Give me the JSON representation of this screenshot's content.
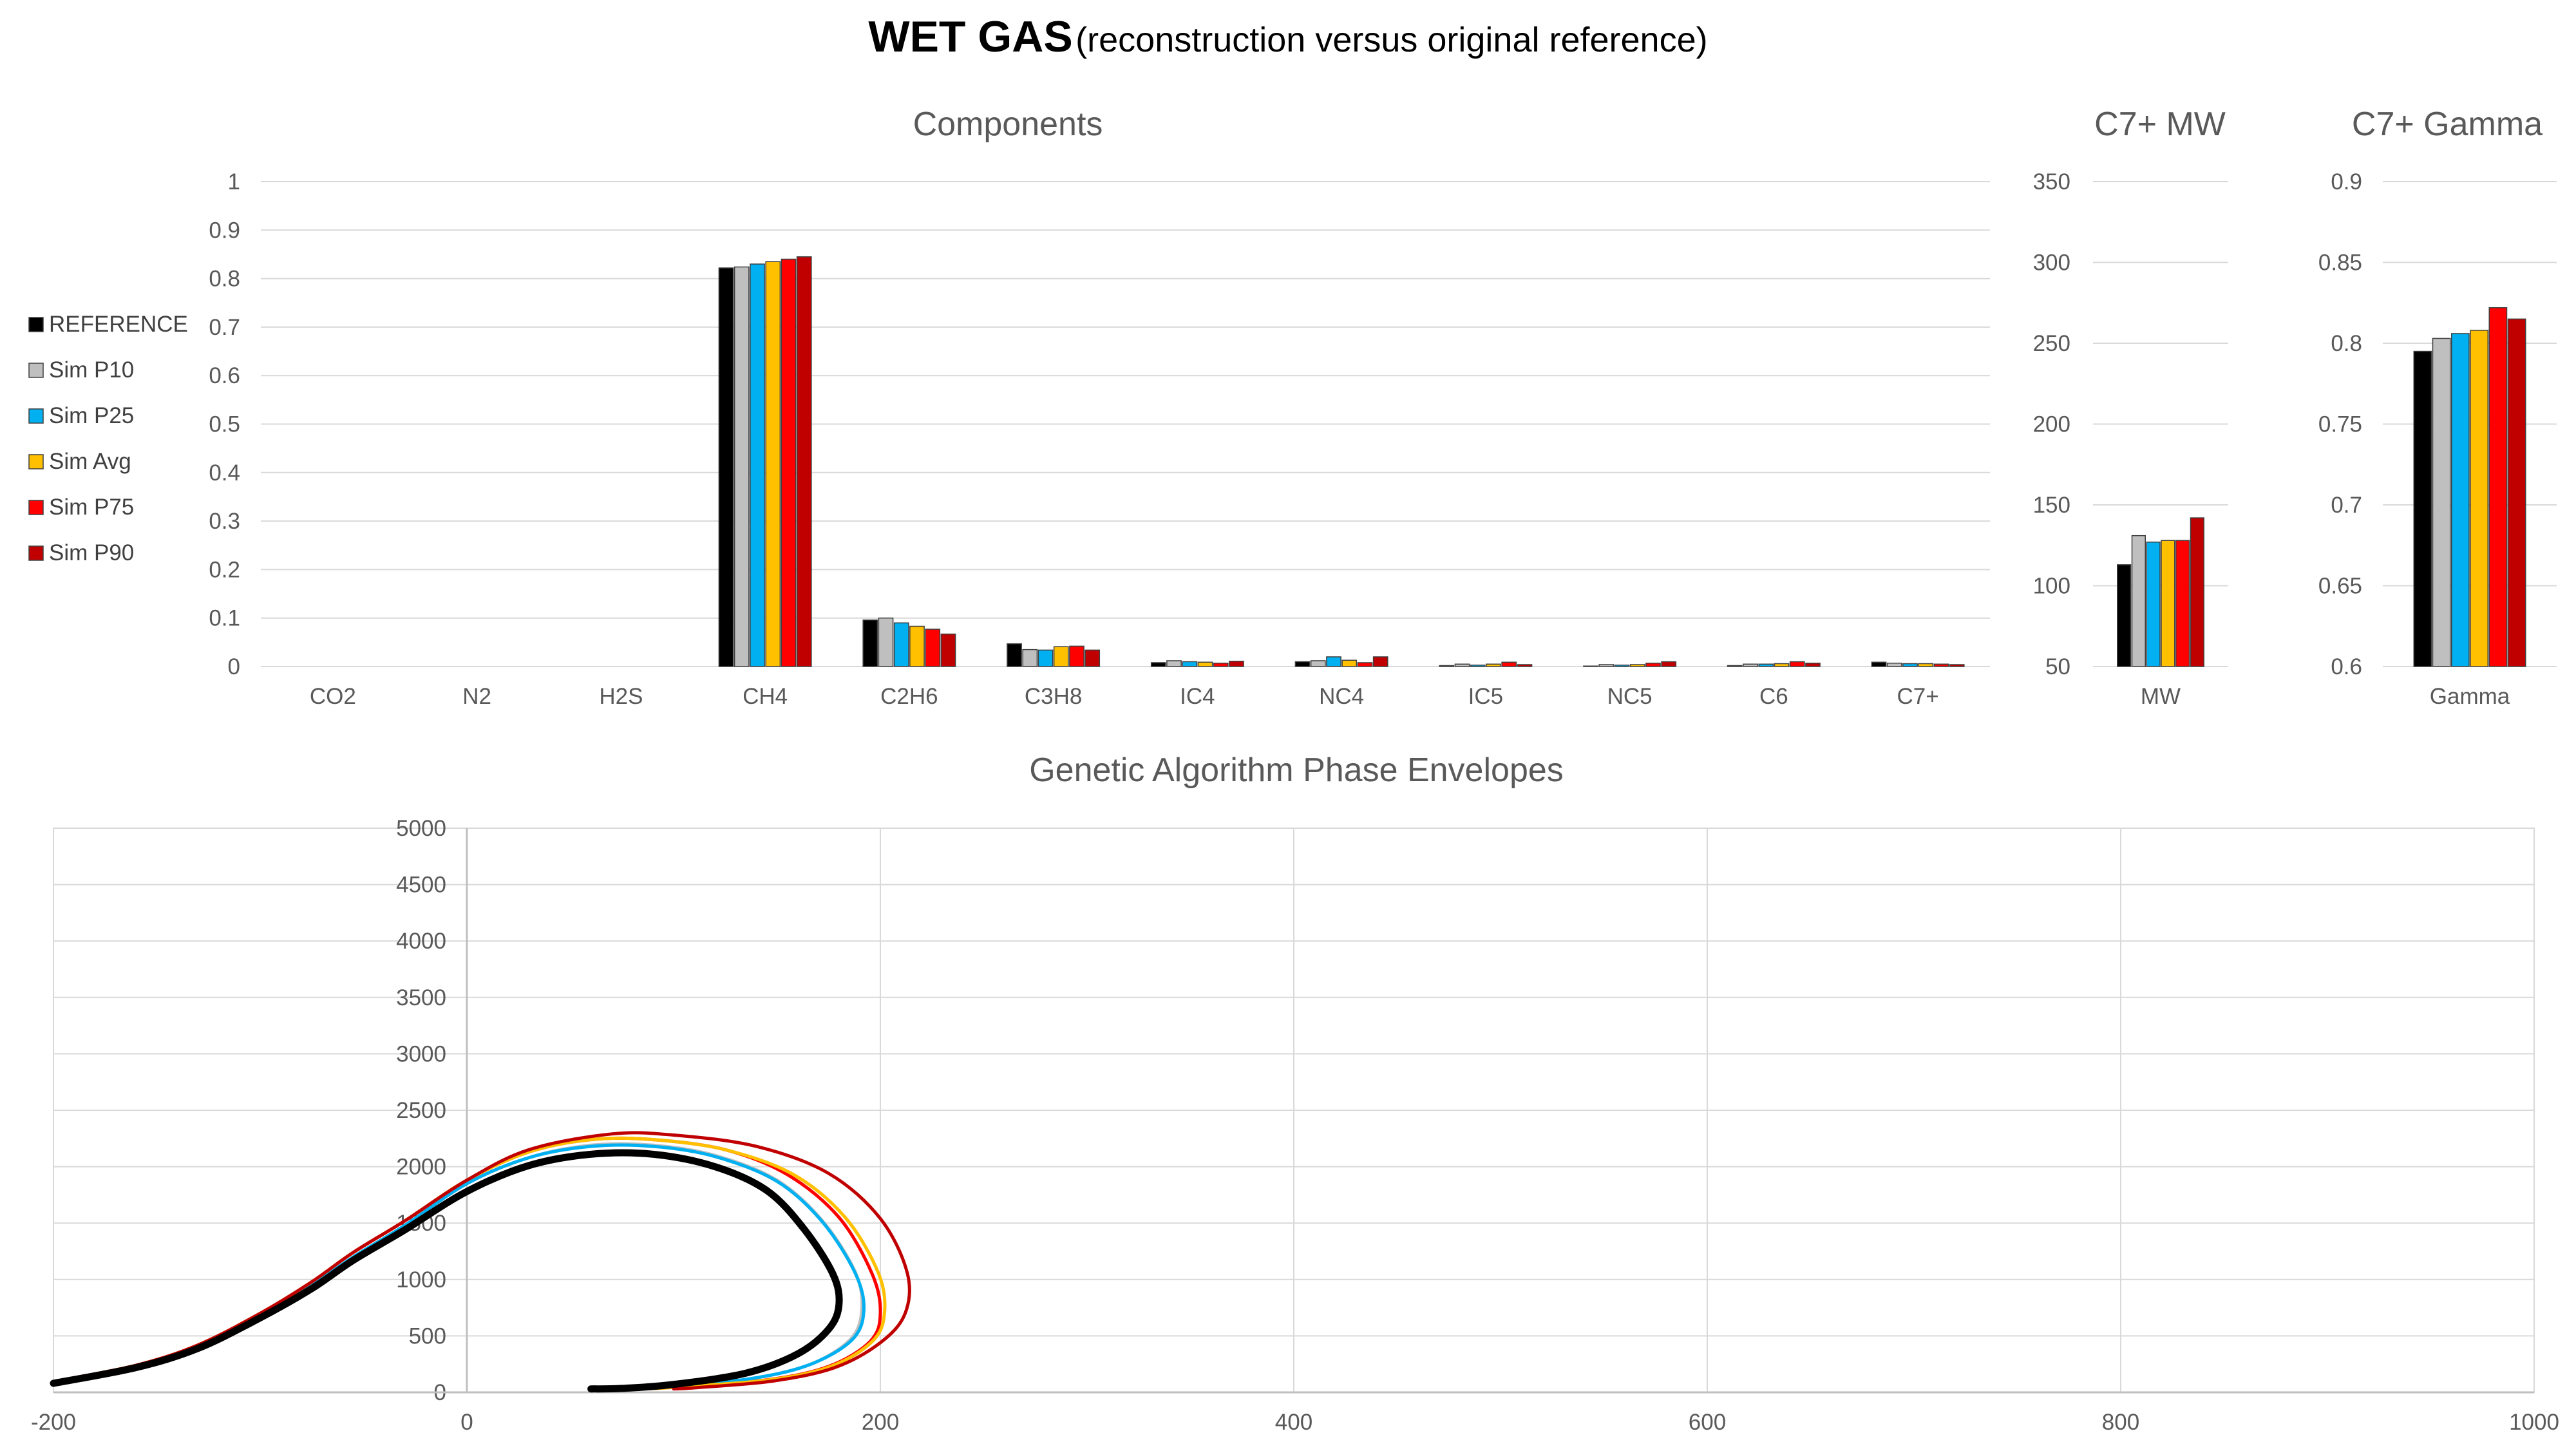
{
  "page": {
    "title_main": "WET GAS",
    "title_sub": "(reconstruction versus original reference)"
  },
  "legend": [
    {
      "name": "REFERENCE",
      "color": "#000000"
    },
    {
      "name": "Sim P10",
      "color": "#bfbfbf"
    },
    {
      "name": "Sim P25",
      "color": "#00b0f0"
    },
    {
      "name": "Sim Avg",
      "color": "#ffc000"
    },
    {
      "name": "Sim P75",
      "color": "#ff0000"
    },
    {
      "name": "Sim P90",
      "color": "#c00000"
    }
  ],
  "chart_data": [
    {
      "type": "bar",
      "title": "Components",
      "categories": [
        "CO2",
        "N2",
        "H2S",
        "CH4",
        "C2H6",
        "C3H8",
        "IC4",
        "NC4",
        "IC5",
        "NC5",
        "C6",
        "C7+"
      ],
      "ylim": [
        0,
        1
      ],
      "yticks": [
        0,
        0.1,
        0.2,
        0.3,
        0.4,
        0.5,
        0.6,
        0.7,
        0.8,
        0.9,
        1
      ],
      "grid": true,
      "legend_position": "left",
      "series": [
        {
          "name": "REFERENCE",
          "color": "#000000",
          "values": [
            0,
            0,
            0,
            0.822,
            0.096,
            0.047,
            0.008,
            0.01,
            0.002,
            0.001,
            0.002,
            0.009
          ]
        },
        {
          "name": "Sim P10",
          "color": "#bfbfbf",
          "values": [
            0,
            0,
            0,
            0.824,
            0.1,
            0.035,
            0.012,
            0.012,
            0.005,
            0.004,
            0.005,
            0.007
          ]
        },
        {
          "name": "Sim P25",
          "color": "#00b0f0",
          "values": [
            0,
            0,
            0,
            0.83,
            0.09,
            0.034,
            0.01,
            0.02,
            0.003,
            0.003,
            0.005,
            0.006
          ]
        },
        {
          "name": "Sim Avg",
          "color": "#ffc000",
          "values": [
            0,
            0,
            0,
            0.835,
            0.083,
            0.041,
            0.009,
            0.013,
            0.005,
            0.004,
            0.006,
            0.006
          ]
        },
        {
          "name": "Sim P75",
          "color": "#ff0000",
          "values": [
            0,
            0,
            0,
            0.84,
            0.077,
            0.042,
            0.007,
            0.008,
            0.009,
            0.007,
            0.01,
            0.005
          ]
        },
        {
          "name": "Sim P90",
          "color": "#c00000",
          "values": [
            0,
            0,
            0,
            0.845,
            0.067,
            0.034,
            0.011,
            0.02,
            0.004,
            0.01,
            0.007,
            0.004
          ]
        }
      ]
    },
    {
      "type": "bar",
      "title": "C7+ MW",
      "categories": [
        "MW"
      ],
      "ylim": [
        50,
        350
      ],
      "yticks": [
        50,
        100,
        150,
        200,
        250,
        300,
        350
      ],
      "grid": true,
      "series": [
        {
          "name": "REFERENCE",
          "color": "#000000",
          "values": [
            113
          ]
        },
        {
          "name": "Sim P10",
          "color": "#bfbfbf",
          "values": [
            131
          ]
        },
        {
          "name": "Sim P25",
          "color": "#00b0f0",
          "values": [
            127
          ]
        },
        {
          "name": "Sim Avg",
          "color": "#ffc000",
          "values": [
            128
          ]
        },
        {
          "name": "Sim P75",
          "color": "#ff0000",
          "values": [
            128
          ]
        },
        {
          "name": "Sim P90",
          "color": "#c00000",
          "values": [
            142
          ]
        }
      ]
    },
    {
      "type": "bar",
      "title": "C7+ Gamma",
      "categories": [
        "Gamma"
      ],
      "ylim": [
        0.6,
        0.9
      ],
      "yticks": [
        0.6,
        0.65,
        0.7,
        0.75,
        0.8,
        0.85,
        0.9
      ],
      "grid": true,
      "series": [
        {
          "name": "REFERENCE",
          "color": "#000000",
          "values": [
            0.795
          ]
        },
        {
          "name": "Sim P10",
          "color": "#bfbfbf",
          "values": [
            0.803
          ]
        },
        {
          "name": "Sim P25",
          "color": "#00b0f0",
          "values": [
            0.806
          ]
        },
        {
          "name": "Sim Avg",
          "color": "#ffc000",
          "values": [
            0.808
          ]
        },
        {
          "name": "Sim P75",
          "color": "#ff0000",
          "values": [
            0.822
          ]
        },
        {
          "name": "Sim P90",
          "color": "#c00000",
          "values": [
            0.815
          ]
        }
      ]
    },
    {
      "type": "line",
      "title": "Genetic Algorithm Phase Envelopes",
      "xlim": [
        -200,
        1000
      ],
      "ylim": [
        0,
        5000
      ],
      "xticks": [
        -200,
        0,
        200,
        400,
        600,
        800,
        1000
      ],
      "yticks": [
        0,
        500,
        1000,
        1500,
        2000,
        2500,
        3000,
        3500,
        4000,
        4500,
        5000
      ],
      "grid": true,
      "series": [
        {
          "name": "Sim P75",
          "color": "#ff0000",
          "width": 5,
          "points": [
            [
              -200,
              95
            ],
            [
              -160,
              240
            ],
            [
              -130,
              420
            ],
            [
              -100,
              700
            ],
            [
              -75,
              980
            ],
            [
              -55,
              1240
            ],
            [
              -30,
              1520
            ],
            [
              0,
              1880
            ],
            [
              30,
              2130
            ],
            [
              60,
              2240
            ],
            [
              90,
              2240
            ],
            [
              125,
              2150
            ],
            [
              155,
              1930
            ],
            [
              180,
              1550
            ],
            [
              196,
              1050
            ],
            [
              200,
              700
            ],
            [
              195,
              450
            ],
            [
              175,
              230
            ],
            [
              145,
              110
            ],
            [
              100,
              45
            ],
            [
              85,
              30
            ]
          ]
        },
        {
          "name": "Sim P10",
          "color": "#bfbfbf",
          "width": 5,
          "points": [
            [
              -200,
              90
            ],
            [
              -160,
              230
            ],
            [
              -130,
              400
            ],
            [
              -100,
              680
            ],
            [
              -75,
              950
            ],
            [
              -55,
              1200
            ],
            [
              -30,
              1480
            ],
            [
              0,
              1850
            ],
            [
              30,
              2080
            ],
            [
              60,
              2190
            ],
            [
              90,
              2190
            ],
            [
              120,
              2100
            ],
            [
              150,
              1880
            ],
            [
              172,
              1520
            ],
            [
              188,
              1060
            ],
            [
              191,
              720
            ],
            [
              185,
              460
            ],
            [
              165,
              240
            ],
            [
              135,
              115
            ],
            [
              95,
              45
            ],
            [
              80,
              30
            ]
          ]
        },
        {
          "name": "Sim P25",
          "color": "#00b0f0",
          "width": 5,
          "points": [
            [
              -200,
              90
            ],
            [
              -160,
              230
            ],
            [
              -130,
              400
            ],
            [
              -100,
              680
            ],
            [
              -75,
              950
            ],
            [
              -55,
              1200
            ],
            [
              -30,
              1480
            ],
            [
              0,
              1850
            ],
            [
              30,
              2080
            ],
            [
              60,
              2180
            ],
            [
              90,
              2180
            ],
            [
              120,
              2090
            ],
            [
              150,
              1870
            ],
            [
              172,
              1510
            ],
            [
              188,
              1050
            ],
            [
              192,
              720
            ],
            [
              186,
              460
            ],
            [
              165,
              240
            ],
            [
              135,
              115
            ],
            [
              95,
              45
            ],
            [
              80,
              30
            ]
          ]
        },
        {
          "name": "Sim Avg",
          "color": "#ffc000",
          "width": 5,
          "points": [
            [
              -200,
              95
            ],
            [
              -160,
              240
            ],
            [
              -130,
              420
            ],
            [
              -100,
              700
            ],
            [
              -75,
              980
            ],
            [
              -55,
              1240
            ],
            [
              -30,
              1520
            ],
            [
              0,
              1880
            ],
            [
              30,
              2130
            ],
            [
              60,
              2240
            ],
            [
              90,
              2240
            ],
            [
              125,
              2150
            ],
            [
              158,
              1930
            ],
            [
              183,
              1550
            ],
            [
              199,
              1060
            ],
            [
              202,
              700
            ],
            [
              196,
              450
            ],
            [
              176,
              230
            ],
            [
              146,
              110
            ],
            [
              100,
              45
            ],
            [
              85,
              30
            ]
          ]
        },
        {
          "name": "Sim P90",
          "color": "#c00000",
          "width": 5,
          "points": [
            [
              -200,
              95
            ],
            [
              -160,
              240
            ],
            [
              -130,
              420
            ],
            [
              -100,
              700
            ],
            [
              -75,
              980
            ],
            [
              -55,
              1240
            ],
            [
              -30,
              1520
            ],
            [
              0,
              1880
            ],
            [
              30,
              2150
            ],
            [
              70,
              2290
            ],
            [
              100,
              2280
            ],
            [
              140,
              2180
            ],
            [
              175,
              1940
            ],
            [
              200,
              1540
            ],
            [
              213,
              1060
            ],
            [
              212,
              700
            ],
            [
              200,
              440
            ],
            [
              178,
              220
            ],
            [
              148,
              100
            ],
            [
              110,
              40
            ],
            [
              100,
              30
            ]
          ]
        },
        {
          "name": "REFERENCE",
          "color": "#000000",
          "width": 11,
          "points": [
            [
              -200,
              80
            ],
            [
              -160,
              220
            ],
            [
              -130,
              390
            ],
            [
              -100,
              660
            ],
            [
              -75,
              920
            ],
            [
              -55,
              1170
            ],
            [
              -30,
              1440
            ],
            [
              0,
              1780
            ],
            [
              30,
              2010
            ],
            [
              60,
              2110
            ],
            [
              90,
              2110
            ],
            [
              120,
              2000
            ],
            [
              145,
              1790
            ],
            [
              163,
              1450
            ],
            [
              177,
              1050
            ],
            [
              180,
              780
            ],
            [
              175,
              560
            ],
            [
              160,
              340
            ],
            [
              135,
              170
            ],
            [
              100,
              70
            ],
            [
              75,
              35
            ],
            [
              60,
              30
            ]
          ]
        }
      ]
    }
  ]
}
